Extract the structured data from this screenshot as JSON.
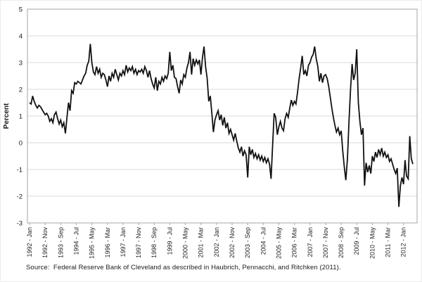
{
  "chart_data": {
    "type": "line",
    "title": "",
    "xlabel": "",
    "ylabel": "Percent",
    "ylim": [
      -3,
      5
    ],
    "ytick_step": 1,
    "ytick_labels": [
      "5",
      "4",
      "3",
      "2",
      "1",
      "0",
      "-1",
      "-2",
      "-3"
    ],
    "grid": "horizontal",
    "legend": "none",
    "line_color": "#111111",
    "gridline_color": "#d9d9d9",
    "border_color": "#a6a6a6",
    "x_unit": "monthly",
    "x_start": "1992 - Jan",
    "x_end": "2012 - Jul",
    "x_tick_interval_months": 10,
    "x_tick_labels": [
      "1992 - Jan",
      "1992 - Nov",
      "1993 - Sep",
      "1994 - Jul",
      "1995 - May",
      "1996 - Mar",
      "1997 - Jan",
      "1997 - Nov",
      "1998 - Sep",
      "1999 - Jul",
      "2000 - May",
      "2001 - Mar",
      "2002 - Jan",
      "2002 - Nov",
      "2003 - Sep",
      "2004 - Jul",
      "2005 - May",
      "2006 - Mar",
      "2007 - Jan",
      "2007 - Nov",
      "2008 - Sep",
      "2009 - Jul",
      "2010 - May",
      "2011 - Mar",
      "2012 - Jan"
    ],
    "values": [
      1.5,
      1.45,
      1.75,
      1.55,
      1.4,
      1.3,
      1.4,
      1.35,
      1.25,
      1.15,
      1.05,
      1.1,
      1.0,
      0.8,
      0.9,
      0.75,
      1.05,
      1.15,
      0.9,
      0.7,
      0.85,
      0.6,
      0.75,
      0.35,
      0.95,
      1.5,
      1.2,
      1.95,
      1.85,
      2.25,
      2.2,
      2.3,
      2.25,
      2.2,
      2.35,
      2.5,
      2.6,
      2.9,
      3.05,
      3.7,
      3.0,
      2.65,
      2.55,
      2.85,
      2.6,
      2.75,
      2.45,
      2.6,
      2.55,
      2.35,
      2.1,
      2.5,
      2.3,
      2.6,
      2.45,
      2.75,
      2.55,
      2.35,
      2.6,
      2.5,
      2.7,
      2.55,
      2.9,
      2.65,
      2.8,
      2.7,
      2.85,
      2.6,
      2.75,
      2.55,
      2.7,
      2.65,
      2.75,
      2.6,
      2.85,
      2.7,
      2.45,
      2.7,
      2.4,
      2.2,
      2.05,
      2.45,
      1.95,
      2.3,
      2.2,
      2.45,
      2.3,
      2.5,
      2.4,
      2.6,
      3.4,
      2.7,
      2.9,
      2.45,
      2.4,
      2.1,
      1.85,
      2.35,
      2.2,
      2.55,
      2.45,
      2.8,
      3.0,
      3.4,
      2.55,
      3.15,
      2.9,
      3.1,
      2.95,
      3.1,
      2.55,
      3.2,
      3.6,
      2.85,
      2.4,
      1.55,
      1.75,
      1.1,
      0.4,
      0.85,
      1.05,
      1.2,
      0.85,
      1.05,
      0.65,
      0.95,
      0.55,
      0.75,
      0.35,
      0.5,
      0.3,
      0.1,
      0.35,
      0.05,
      -0.2,
      -0.35,
      -0.15,
      -0.5,
      -0.3,
      -0.45,
      -1.3,
      -0.15,
      -0.45,
      -0.25,
      -0.55,
      -0.4,
      -0.6,
      -0.45,
      -0.65,
      -0.5,
      -0.7,
      -0.55,
      -0.75,
      -0.6,
      -0.8,
      -1.35,
      -0.1,
      1.1,
      0.95,
      0.3,
      0.6,
      0.8,
      0.55,
      0.45,
      0.9,
      1.1,
      0.95,
      1.3,
      1.6,
      1.4,
      1.55,
      1.45,
      1.9,
      2.4,
      2.8,
      3.25,
      2.55,
      2.7,
      2.5,
      2.9,
      3.0,
      3.2,
      3.3,
      3.6,
      3.15,
      2.85,
      2.3,
      2.6,
      2.25,
      2.5,
      2.55,
      2.4,
      2.1,
      1.7,
      1.3,
      0.95,
      0.65,
      0.4,
      0.55,
      0.3,
      0.45,
      -0.3,
      -0.9,
      -1.4,
      -0.6,
      0.8,
      2.0,
      2.95,
      2.35,
      2.6,
      3.5,
      1.5,
      0.8,
      0.3,
      0.55,
      -1.6,
      -0.75,
      -1.1,
      -0.85,
      -1.15,
      -0.5,
      -0.7,
      -0.35,
      -0.55,
      -0.25,
      -0.45,
      -0.2,
      -0.5,
      -0.35,
      -0.55,
      -0.45,
      -0.7,
      -0.6,
      -0.8,
      -1.0,
      -1.15,
      -0.95,
      -2.4,
      -1.6,
      -1.3,
      -1.55,
      -0.65,
      -1.25,
      -1.35,
      0.25,
      -0.6,
      -0.8
    ]
  },
  "source_note": "Source:  Federal Reserve Bank of Cleveland as described in Haubrich, Pennacchi, and Ritchken (2011)."
}
